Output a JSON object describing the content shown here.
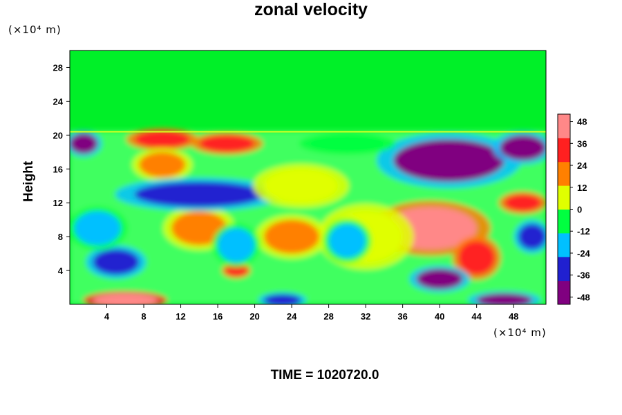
{
  "chart_data": {
    "type": "heatmap",
    "title": "zonal velocity",
    "ylabel": "Height",
    "y_unit": "(×10⁴ m)",
    "x_unit": "(×10⁴ m)",
    "footer": "TIME = 1020720.0",
    "xlim": [
      0,
      51.5
    ],
    "ylim": [
      0,
      30
    ],
    "x_ticks": [
      "4",
      "8",
      "12",
      "16",
      "20",
      "24",
      "28",
      "32",
      "36",
      "40",
      "44",
      "48"
    ],
    "y_ticks": [
      "4",
      "8",
      "12",
      "16",
      "20",
      "24",
      "28"
    ],
    "colorbar": {
      "range": [
        -52,
        52
      ],
      "ticks": [
        "48",
        "36",
        "24",
        "12",
        "0",
        "-12",
        "-24",
        "-36",
        "-48"
      ],
      "colors": [
        "#800080",
        "#2020d0",
        "#00c0ff",
        "#00ff40",
        "#e0ff00",
        "#ff8000",
        "#ff2020",
        "#ff8888"
      ]
    },
    "features": [
      {
        "x": 6,
        "y": 0.5,
        "v": 52,
        "rx": 3.5,
        "ry": 0.8
      },
      {
        "x": 39,
        "y": 9,
        "v": 46,
        "rx": 5,
        "ry": 2.5
      },
      {
        "x": 44,
        "y": 5.5,
        "v": 30,
        "rx": 2,
        "ry": 2
      },
      {
        "x": 32,
        "y": 8,
        "v": 10,
        "rx": 4,
        "ry": 3
      },
      {
        "x": 10,
        "y": 19.5,
        "v": 30,
        "rx": 3,
        "ry": 1
      },
      {
        "x": 17,
        "y": 19,
        "v": 28,
        "rx": 3,
        "ry": 1
      },
      {
        "x": 10,
        "y": 16.5,
        "v": 24,
        "rx": 2.5,
        "ry": 1.5
      },
      {
        "x": 49,
        "y": 12,
        "v": 32,
        "rx": 2,
        "ry": 1
      },
      {
        "x": 18,
        "y": 4,
        "v": 28,
        "rx": 1.2,
        "ry": 0.7
      },
      {
        "x": 24,
        "y": 8,
        "v": 16,
        "rx": 3,
        "ry": 2
      },
      {
        "x": 14,
        "y": 9,
        "v": 14,
        "rx": 3,
        "ry": 2
      },
      {
        "x": 41,
        "y": 17,
        "v": -46,
        "rx": 6,
        "ry": 2.5
      },
      {
        "x": 49,
        "y": 18.5,
        "v": -40,
        "rx": 2.5,
        "ry": 1.5
      },
      {
        "x": 14,
        "y": 13,
        "v": -38,
        "rx": 7,
        "ry": 1.5
      },
      {
        "x": 1.5,
        "y": 19,
        "v": -46,
        "rx": 1.5,
        "ry": 1.2
      },
      {
        "x": 40,
        "y": 3,
        "v": -48,
        "rx": 2.5,
        "ry": 1.2
      },
      {
        "x": 47,
        "y": 0.5,
        "v": -44,
        "rx": 3,
        "ry": 0.8
      },
      {
        "x": 23,
        "y": 0.5,
        "v": -38,
        "rx": 2,
        "ry": 0.7
      },
      {
        "x": 5,
        "y": 5,
        "v": -34,
        "rx": 2.5,
        "ry": 1.5
      },
      {
        "x": 18,
        "y": 7,
        "v": -22,
        "rx": 2,
        "ry": 2
      },
      {
        "x": 30,
        "y": 7.5,
        "v": -18,
        "rx": 2,
        "ry": 2
      },
      {
        "x": 3,
        "y": 9,
        "v": -26,
        "rx": 2.5,
        "ry": 2
      },
      {
        "x": 50,
        "y": 8,
        "v": -34,
        "rx": 1.5,
        "ry": 1.5
      },
      {
        "x": 30,
        "y": 19,
        "v": -10,
        "rx": 4,
        "ry": 1
      },
      {
        "x": 25,
        "y": 14,
        "v": 8,
        "rx": 4,
        "ry": 2
      }
    ]
  }
}
